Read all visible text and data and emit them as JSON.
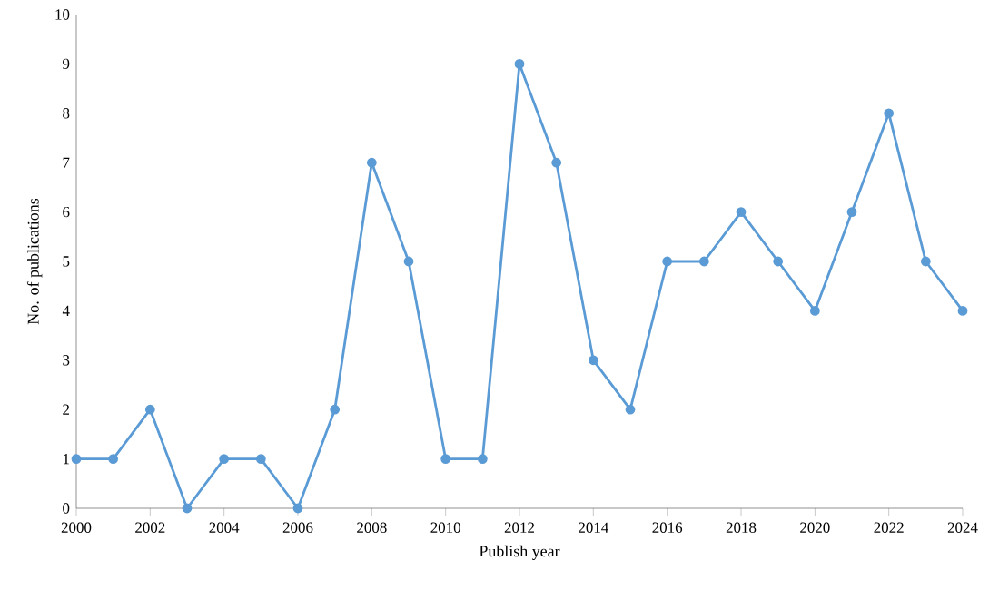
{
  "chart_data": {
    "type": "line",
    "xlabel": "Publish year",
    "ylabel": "No. of publications",
    "x": [
      2000,
      2001,
      2002,
      2003,
      2004,
      2005,
      2006,
      2007,
      2008,
      2009,
      2010,
      2011,
      2012,
      2013,
      2014,
      2015,
      2016,
      2017,
      2018,
      2019,
      2020,
      2021,
      2022,
      2023,
      2024
    ],
    "values": [
      1,
      1,
      2,
      0,
      1,
      1,
      0,
      2,
      7,
      5,
      1,
      1,
      9,
      7,
      3,
      2,
      5,
      5,
      6,
      5,
      4,
      6,
      8,
      5,
      4
    ],
    "color": "#5b9bd5",
    "marker": "circle",
    "line_style": "solid",
    "xlim": [
      2000,
      2024
    ],
    "xticks": [
      2000,
      2002,
      2004,
      2006,
      2008,
      2010,
      2012,
      2014,
      2016,
      2018,
      2020,
      2022,
      2024
    ],
    "ylim": [
      0,
      10
    ],
    "yticks": [
      0,
      1,
      2,
      3,
      4,
      5,
      6,
      7,
      8,
      9,
      10
    ]
  }
}
